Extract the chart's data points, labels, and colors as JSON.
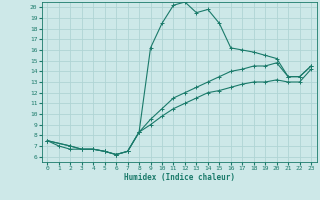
{
  "xlabel": "Humidex (Indice chaleur)",
  "bg_color": "#cde8e8",
  "grid_color": "#b0d4d4",
  "line_color": "#1a7a6a",
  "xlim": [
    -0.5,
    23.5
  ],
  "ylim": [
    5.5,
    20.5
  ],
  "xticks": [
    0,
    1,
    2,
    3,
    4,
    5,
    6,
    7,
    8,
    9,
    10,
    11,
    12,
    13,
    14,
    15,
    16,
    17,
    18,
    19,
    20,
    21,
    22,
    23
  ],
  "yticks": [
    6,
    7,
    8,
    9,
    10,
    11,
    12,
    13,
    14,
    15,
    16,
    17,
    18,
    19,
    20
  ],
  "line1_x": [
    0,
    1,
    2,
    3,
    4,
    5,
    6,
    7,
    8,
    9,
    10,
    11,
    12,
    13,
    14,
    15,
    16,
    17,
    18,
    19,
    20,
    21,
    22,
    23
  ],
  "line1_y": [
    7.5,
    7.0,
    6.7,
    6.7,
    6.7,
    6.5,
    6.2,
    6.5,
    8.3,
    16.2,
    18.5,
    20.2,
    20.5,
    19.5,
    19.8,
    18.5,
    16.2,
    16.0,
    15.8,
    15.5,
    15.2,
    13.5,
    13.5,
    14.5
  ],
  "line2_x": [
    0,
    2,
    3,
    4,
    5,
    6,
    7,
    8,
    9,
    10,
    11,
    12,
    13,
    14,
    15,
    16,
    17,
    18,
    19,
    20,
    21,
    22,
    23
  ],
  "line2_y": [
    7.5,
    7.0,
    6.7,
    6.7,
    6.5,
    6.2,
    6.5,
    8.3,
    9.5,
    10.5,
    11.5,
    12.0,
    12.5,
    13.0,
    13.5,
    14.0,
    14.2,
    14.5,
    14.5,
    14.8,
    13.5,
    13.5,
    14.5
  ],
  "line3_x": [
    0,
    2,
    3,
    4,
    5,
    6,
    7,
    8,
    9,
    10,
    11,
    12,
    13,
    14,
    15,
    16,
    17,
    18,
    19,
    20,
    21,
    22,
    23
  ],
  "line3_y": [
    7.5,
    7.0,
    6.7,
    6.7,
    6.5,
    6.2,
    6.5,
    8.3,
    9.0,
    9.8,
    10.5,
    11.0,
    11.5,
    12.0,
    12.2,
    12.5,
    12.8,
    13.0,
    13.0,
    13.2,
    13.0,
    13.0,
    14.2
  ]
}
